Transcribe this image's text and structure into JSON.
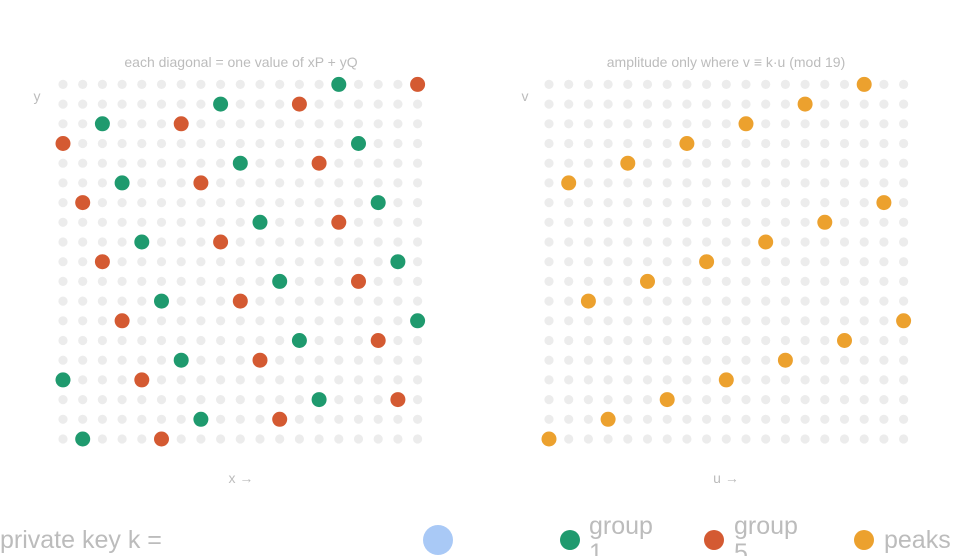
{
  "left_panel": {
    "title": "each diagonal = one value of xP + yQ",
    "y_label": "y",
    "x_label": "x →",
    "grid_n": 19,
    "green_points": [
      [
        14,
        18
      ],
      [
        8,
        17
      ],
      [
        2,
        16
      ],
      [
        15,
        15
      ],
      [
        9,
        14
      ],
      [
        3,
        13
      ],
      [
        16,
        12
      ],
      [
        10,
        11
      ],
      [
        4,
        10
      ],
      [
        17,
        9
      ],
      [
        11,
        8
      ],
      [
        5,
        7
      ],
      [
        18,
        6
      ],
      [
        12,
        5
      ],
      [
        6,
        4
      ],
      [
        0,
        3
      ],
      [
        13,
        2
      ],
      [
        7,
        1
      ],
      [
        1,
        0
      ]
    ],
    "red_points": [
      [
        18,
        18
      ],
      [
        12,
        17
      ],
      [
        6,
        16
      ],
      [
        0,
        15
      ],
      [
        13,
        14
      ],
      [
        7,
        13
      ],
      [
        1,
        12
      ],
      [
        14,
        11
      ],
      [
        8,
        10
      ],
      [
        2,
        9
      ],
      [
        15,
        8
      ],
      [
        9,
        7
      ],
      [
        3,
        6
      ],
      [
        16,
        5
      ],
      [
        10,
        4
      ],
      [
        4,
        3
      ],
      [
        17,
        2
      ],
      [
        11,
        1
      ],
      [
        5,
        0
      ]
    ]
  },
  "right_panel": {
    "title": "amplitude only where v ≡ k·u (mod 19)",
    "y_label": "v",
    "x_label": "u →",
    "grid_n": 19,
    "peak_points": [
      [
        16,
        18
      ],
      [
        13,
        17
      ],
      [
        10,
        16
      ],
      [
        7,
        15
      ],
      [
        4,
        14
      ],
      [
        1,
        13
      ],
      [
        17,
        12
      ],
      [
        14,
        11
      ],
      [
        11,
        10
      ],
      [
        8,
        9
      ],
      [
        5,
        8
      ],
      [
        2,
        7
      ],
      [
        18,
        6
      ],
      [
        15,
        5
      ],
      [
        12,
        4
      ],
      [
        9,
        3
      ],
      [
        6,
        2
      ],
      [
        3,
        1
      ],
      [
        0,
        0
      ]
    ]
  },
  "footer": {
    "private_key_label": "private key k =",
    "private_key_value": ""
  },
  "legend": [
    {
      "label": "group 1",
      "color": "#1f9a6e"
    },
    {
      "label": "group 5",
      "color": "#d45a32"
    },
    {
      "label": "peaks",
      "color": "#eca12e"
    }
  ],
  "colors": {
    "grid_dot": "#ececec",
    "text": "#bcbcbc",
    "green": "#1f9a6e",
    "red": "#d45a32",
    "orange": "#eca12e",
    "key_circle": "#a9c9f6"
  }
}
